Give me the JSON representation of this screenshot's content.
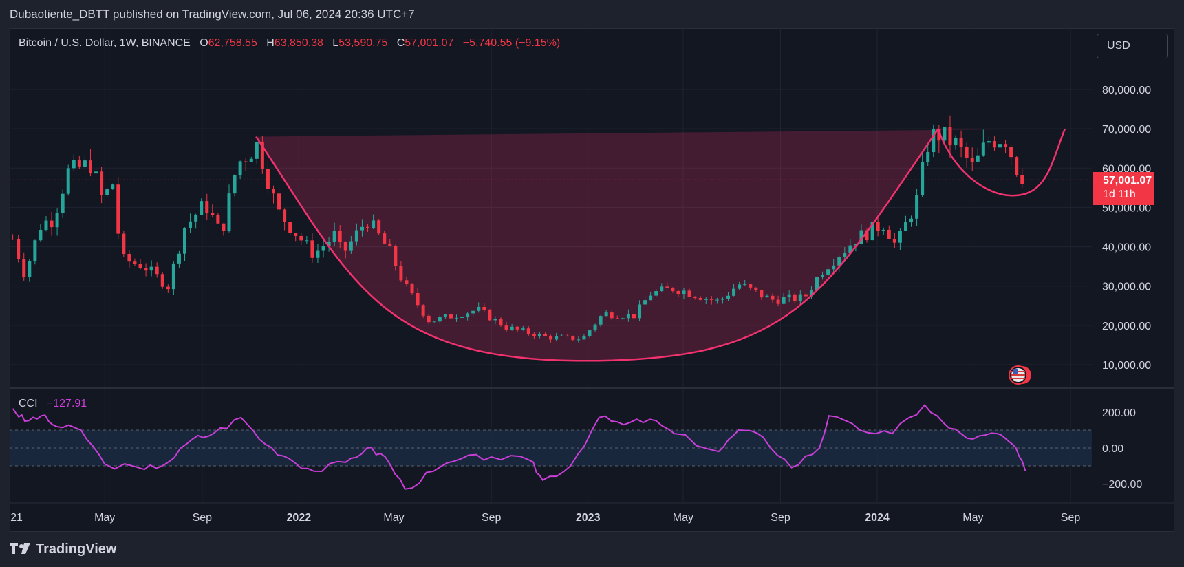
{
  "header": {
    "publisher": "Dubaotiente_DBTT published on TradingView.com, Jul 06, 2024 20:36 UTC+7"
  },
  "legend": {
    "symbol": "Bitcoin / U.S. Dollar, 1W, BINANCE",
    "o_label": "O",
    "o_value": "62,758.55",
    "h_label": "H",
    "h_value": "63,850.38",
    "l_label": "L",
    "l_value": "53,590.75",
    "c_label": "C",
    "c_value": "57,001.07",
    "change": "−5,740.55 (−9.15%)"
  },
  "currency_button": "USD",
  "last_price": {
    "value": "57,001.07",
    "countdown": "1d 11h"
  },
  "cci": {
    "name": "CCI",
    "value": "−127.91"
  },
  "footer": {
    "brand": "TradingView"
  },
  "colors": {
    "up": "#26a69a",
    "down": "#f23645",
    "pattern": "#f2326e",
    "cci": "#c93fd8",
    "band": "#1b2d45"
  },
  "chart_data": {
    "type": "candlestick",
    "symbol": "BTCUSD",
    "interval": "1W",
    "x_ticks": [
      "21",
      "May",
      "Sep",
      "2022",
      "May",
      "Sep",
      "2023",
      "May",
      "Sep",
      "2024",
      "May",
      "Sep"
    ],
    "y_ticks": [
      "10,000.00",
      "20,000.00",
      "30,000.00",
      "40,000.00",
      "50,000.00",
      "60,000.00",
      "70,000.00",
      "80,000.00"
    ],
    "cci_ticks": [
      "200.00",
      "0.00",
      "−200.00"
    ],
    "cci_band": [
      -100,
      100
    ],
    "last_close": 57001.07,
    "price_path": [
      [
        "2021-01-05",
        42000
      ],
      [
        "2021-01-20",
        33000
      ],
      [
        "2021-02-10",
        46000
      ],
      [
        "2021-02-25",
        47000
      ],
      [
        "2021-03-15",
        59000
      ],
      [
        "2021-04-14",
        61000
      ],
      [
        "2021-04-28",
        52000
      ],
      [
        "2021-05-14",
        57000
      ],
      [
        "2021-05-20",
        37000
      ],
      [
        "2021-06-20",
        35000
      ],
      [
        "2021-07-20",
        30000
      ],
      [
        "2021-08-10",
        45000
      ],
      [
        "2021-09-05",
        51000
      ],
      [
        "2021-09-25",
        43000
      ],
      [
        "2021-10-15",
        61000
      ],
      [
        "2021-11-10",
        66000
      ],
      [
        "2021-12-05",
        49000
      ],
      [
        "2022-01-20",
        38000
      ],
      [
        "2022-02-15",
        43000
      ],
      [
        "2022-02-25",
        38000
      ],
      [
        "2022-03-28",
        47000
      ],
      [
        "2022-04-25",
        39000
      ],
      [
        "2022-05-15",
        30000
      ],
      [
        "2022-06-15",
        21000
      ],
      [
        "2022-07-25",
        23000
      ],
      [
        "2022-08-15",
        24000
      ],
      [
        "2022-09-20",
        19500
      ],
      [
        "2022-11-10",
        17000
      ],
      [
        "2022-12-25",
        16600
      ],
      [
        "2023-01-20",
        23000
      ],
      [
        "2023-03-01",
        22500
      ],
      [
        "2023-03-20",
        28000
      ],
      [
        "2023-04-20",
        29500
      ],
      [
        "2023-06-15",
        26000
      ],
      [
        "2023-07-10",
        30500
      ],
      [
        "2023-08-20",
        26500
      ],
      [
        "2023-10-01",
        27000
      ],
      [
        "2023-10-25",
        34500
      ],
      [
        "2023-12-05",
        42000
      ],
      [
        "2024-01-10",
        46000
      ],
      [
        "2024-01-25",
        40000
      ],
      [
        "2024-02-20",
        52000
      ],
      [
        "2024-03-05",
        66000
      ],
      [
        "2024-03-15",
        69000
      ],
      [
        "2024-04-10",
        66000
      ],
      [
        "2024-05-01",
        60000
      ],
      [
        "2024-05-20",
        67000
      ],
      [
        "2024-06-10",
        68000
      ],
      [
        "2024-06-25",
        60000
      ],
      [
        "2024-07-06",
        57001
      ]
    ],
    "cci_path": [
      [
        "2021-01-05",
        220
      ],
      [
        "2021-01-20",
        150
      ],
      [
        "2021-02-10",
        180
      ],
      [
        "2021-03-01",
        120
      ],
      [
        "2021-04-01",
        100
      ],
      [
        "2021-05-01",
        -90
      ],
      [
        "2021-06-20",
        -120
      ],
      [
        "2021-07-20",
        -80
      ],
      [
        "2021-08-20",
        50
      ],
      [
        "2021-09-15",
        80
      ],
      [
        "2021-10-20",
        170
      ],
      [
        "2021-11-20",
        20
      ],
      [
        "2021-12-20",
        -60
      ],
      [
        "2022-01-20",
        -130
      ],
      [
        "2022-03-01",
        -80
      ],
      [
        "2022-03-28",
        0
      ],
      [
        "2022-04-20",
        -50
      ],
      [
        "2022-05-15",
        -230
      ],
      [
        "2022-06-20",
        -130
      ],
      [
        "2022-07-25",
        -60
      ],
      [
        "2022-09-01",
        -50
      ],
      [
        "2022-10-20",
        -70
      ],
      [
        "2022-11-05",
        -180
      ],
      [
        "2022-12-10",
        -100
      ],
      [
        "2023-01-15",
        170
      ],
      [
        "2023-02-15",
        130
      ],
      [
        "2023-03-20",
        160
      ],
      [
        "2023-04-20",
        80
      ],
      [
        "2023-06-15",
        -20
      ],
      [
        "2023-07-10",
        100
      ],
      [
        "2023-08-10",
        60
      ],
      [
        "2023-09-15",
        -110
      ],
      [
        "2023-10-20",
        0
      ],
      [
        "2023-11-01",
        180
      ],
      [
        "2023-12-10",
        100
      ],
      [
        "2024-01-20",
        80
      ],
      [
        "2024-03-01",
        240
      ],
      [
        "2024-04-01",
        110
      ],
      [
        "2024-05-01",
        50
      ],
      [
        "2024-06-01",
        80
      ],
      [
        "2024-06-20",
        20
      ],
      [
        "2024-07-06",
        -128
      ]
    ]
  }
}
